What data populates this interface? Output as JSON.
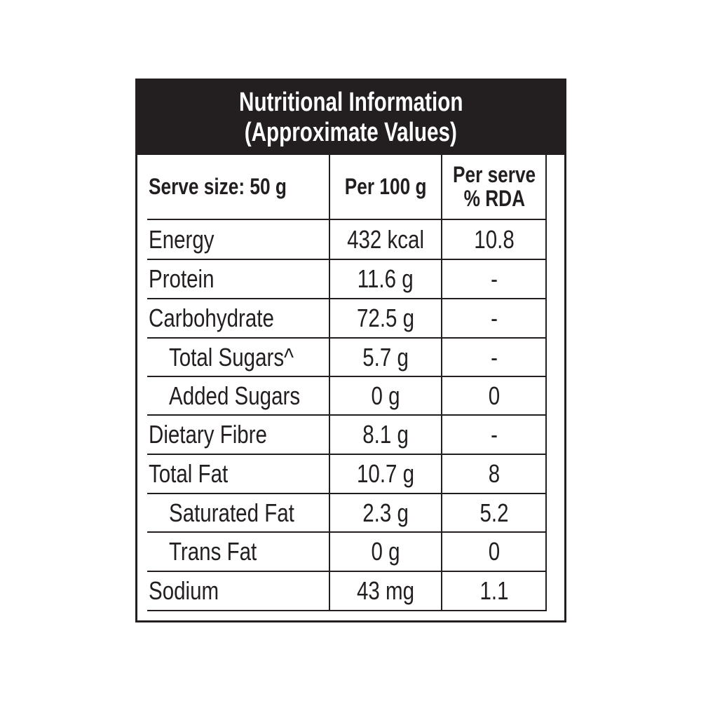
{
  "header": {
    "line1": "Nutritional Information",
    "line2": "(Approximate Values)"
  },
  "columns": {
    "serve_size": "Serve size: 50 g",
    "per_100g": "Per 100 g",
    "per_serve_line1": "Per serve",
    "per_serve_line2": "% RDA"
  },
  "rows": [
    {
      "name": "Energy",
      "per_100g": "432 kcal",
      "rda": "10.8"
    },
    {
      "name": "Protein",
      "per_100g": "11.6 g",
      "rda": "-"
    },
    {
      "name": "Carbohydrate",
      "per_100g": "72.5 g",
      "rda": "-"
    },
    {
      "name": "Total Sugars^",
      "per_100g": "5.7 g",
      "rda": "-"
    },
    {
      "name": "Added Sugars",
      "per_100g": "0 g",
      "rda": "0"
    },
    {
      "name": "Dietary Fibre",
      "per_100g": "8.1 g",
      "rda": "-"
    },
    {
      "name": "Total Fat",
      "per_100g": "10.7 g",
      "rda": "8"
    },
    {
      "name": "Saturated Fat",
      "per_100g": "2.3 g",
      "rda": "5.2"
    },
    {
      "name": "Trans Fat",
      "per_100g": "0 g",
      "rda": "0"
    },
    {
      "name": "Sodium",
      "per_100g": "43 mg",
      "rda": "1.1"
    }
  ]
}
